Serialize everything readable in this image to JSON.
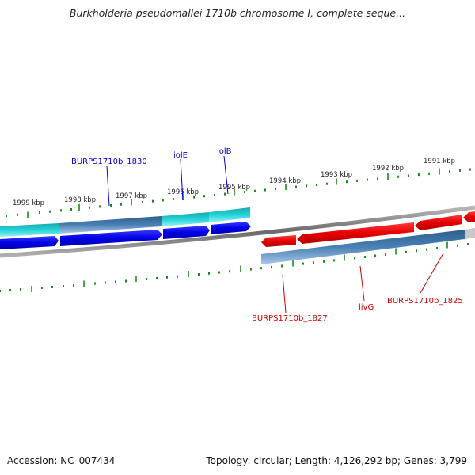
{
  "title": "Burkholderia pseudomallei 1710b chromosome I, complete seque...",
  "footer": {
    "accession": "Accession: NC_007434",
    "summary": "Topology: circular; Length: 4,126,292 bp; Genes: 3,799"
  },
  "ruler_labels": [
    "1999 kbp",
    "1998 kbp",
    "1997 kbp",
    "1996 kbp",
    "1995 kbp",
    "1994 kbp",
    "1993 kbp",
    "1992 kbp",
    "1991 kbp"
  ],
  "gene_labels": {
    "burps1830": "BURPS1710b_1830",
    "iolE": "iolE",
    "iolB": "iolB",
    "burps1827": "BURPS1710b_1827",
    "livG": "livG",
    "burps1825": "BURPS1710b_1825"
  },
  "colors": {
    "forward_gene": "#0000ee",
    "forward_cds": "#12c8cc",
    "forward_cds_dark": "#3a78a8",
    "reverse_gene": "#ee0000",
    "reverse_cds": "#4a7fb8",
    "tick": "#1a8a1a",
    "backbone": "#8a8a8a",
    "label_forward": "#0000cc",
    "label_reverse": "#cc0000"
  }
}
